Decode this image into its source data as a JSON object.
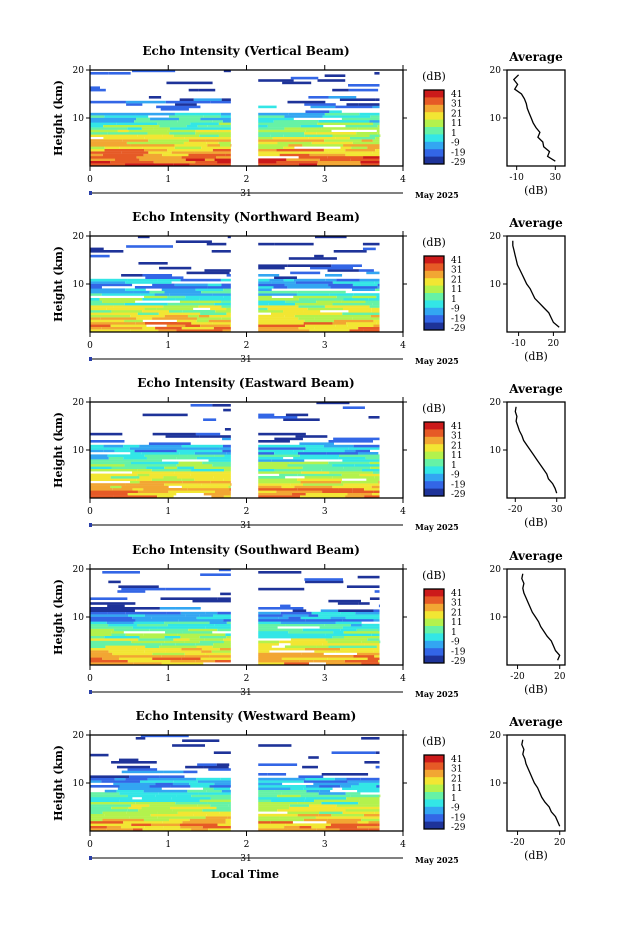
{
  "figure": {
    "common_xlabel": "Local Time",
    "date_label": "May 2025",
    "day_label": "31",
    "cbar_unit": "(dB)",
    "cbar_ticks": [
      "41",
      "31",
      "21",
      "11",
      "1",
      "-9",
      "-19",
      "-29"
    ],
    "avg_title": "Average",
    "avg_unit": "(dB)"
  },
  "colors": {
    "colormap": [
      "#1e3399",
      "#3366e6",
      "#33a6f2",
      "#33e6e6",
      "#66f2a6",
      "#b3f24d",
      "#f2e633",
      "#f2a633",
      "#e65a26",
      "#cc1a1a"
    ]
  },
  "chart_data": [
    {
      "type": "heatmap",
      "title": "Echo Intensity (Vertical Beam)",
      "ylabel": "Height (km)",
      "xlim": [
        0,
        4
      ],
      "ylim": [
        0,
        20
      ],
      "xticks": [
        "0",
        "1",
        "2",
        "3",
        "4"
      ],
      "yticks": [
        "20",
        "10"
      ],
      "data_gap_hours": [
        1.8,
        2.15
      ],
      "data_end_hour": 3.7,
      "clim": [
        -29,
        41
      ],
      "avg_profile": {
        "xticks": [
          "-10",
          "30"
        ],
        "xlim": [
          -20,
          40
        ],
        "height_km": [
          1,
          2,
          3,
          4,
          5,
          6,
          7,
          8,
          9,
          10,
          11,
          12,
          13,
          14,
          15,
          16,
          17,
          18,
          19
        ],
        "db": [
          30,
          22,
          24,
          18,
          17,
          12,
          14,
          10,
          7,
          5,
          3,
          1,
          0,
          -2,
          -5,
          -12,
          -9,
          -13,
          -8
        ]
      }
    },
    {
      "type": "heatmap",
      "title": "Echo Intensity (Northward Beam)",
      "ylabel": "Height (km)",
      "xlim": [
        0,
        4
      ],
      "ylim": [
        0,
        20
      ],
      "xticks": [
        "0",
        "1",
        "2",
        "3",
        "4"
      ],
      "yticks": [
        "20",
        "10"
      ],
      "data_gap_hours": [
        1.8,
        2.15
      ],
      "data_end_hour": 3.7,
      "clim": [
        -29,
        41
      ],
      "avg_profile": {
        "xticks": [
          "-10",
          "20"
        ],
        "xlim": [
          -20,
          30
        ],
        "height_km": [
          1,
          2,
          3,
          4,
          5,
          6,
          7,
          8,
          9,
          10,
          11,
          12,
          13,
          14,
          15,
          16,
          17,
          18,
          19
        ],
        "db": [
          25,
          20,
          18,
          16,
          12,
          8,
          4,
          2,
          0,
          -3,
          -5,
          -7,
          -9,
          -11,
          -12,
          -13,
          -14,
          -15,
          -15
        ]
      }
    },
    {
      "type": "heatmap",
      "title": "Echo Intensity (Eastward Beam)",
      "ylabel": "Height (km)",
      "xlim": [
        0,
        4
      ],
      "ylim": [
        0,
        20
      ],
      "xticks": [
        "0",
        "1",
        "2",
        "3",
        "4"
      ],
      "yticks": [
        "20",
        "10"
      ],
      "data_gap_hours": [
        1.8,
        2.15
      ],
      "data_end_hour": 3.7,
      "clim": [
        -29,
        41
      ],
      "avg_profile": {
        "xticks": [
          "-20",
          "30"
        ],
        "xlim": [
          -30,
          40
        ],
        "height_km": [
          1,
          2,
          3,
          4,
          5,
          6,
          7,
          8,
          9,
          10,
          11,
          12,
          13,
          14,
          15,
          16,
          17,
          18,
          19
        ],
        "db": [
          30,
          28,
          25,
          20,
          18,
          14,
          10,
          6,
          2,
          -2,
          -6,
          -10,
          -12,
          -15,
          -17,
          -19,
          -18,
          -20,
          -19
        ]
      }
    },
    {
      "type": "heatmap",
      "title": "Echo Intensity (Southward Beam)",
      "ylabel": "Height (km)",
      "xlim": [
        0,
        4
      ],
      "ylim": [
        0,
        20
      ],
      "xticks": [
        "0",
        "1",
        "2",
        "3",
        "4"
      ],
      "yticks": [
        "20",
        "10"
      ],
      "data_gap_hours": [
        1.8,
        2.15
      ],
      "data_end_hour": 3.7,
      "clim": [
        -29,
        41
      ],
      "avg_profile": {
        "xticks": [
          "-20",
          "20"
        ],
        "xlim": [
          -30,
          25
        ],
        "height_km": [
          1,
          2,
          3,
          4,
          5,
          6,
          7,
          8,
          9,
          10,
          11,
          12,
          13,
          14,
          15,
          16,
          17,
          18,
          19
        ],
        "db": [
          18,
          20,
          16,
          14,
          12,
          8,
          5,
          2,
          0,
          -3,
          -6,
          -8,
          -10,
          -12,
          -14,
          -15,
          -14,
          -16,
          -15
        ]
      }
    },
    {
      "type": "heatmap",
      "title": "Echo Intensity (Westward Beam)",
      "ylabel": "Height (km)",
      "xlim": [
        0,
        4
      ],
      "ylim": [
        0,
        20
      ],
      "xticks": [
        "0",
        "1",
        "2",
        "3",
        "4"
      ],
      "yticks": [
        "20",
        "10"
      ],
      "data_gap_hours": [
        1.8,
        2.15
      ],
      "data_end_hour": 3.7,
      "clim": [
        -29,
        41
      ],
      "avg_profile": {
        "xticks": [
          "-20",
          "20"
        ],
        "xlim": [
          -30,
          25
        ],
        "height_km": [
          1,
          2,
          3,
          4,
          5,
          6,
          7,
          8,
          9,
          10,
          11,
          12,
          13,
          14,
          15,
          16,
          17,
          18,
          19
        ],
        "db": [
          20,
          18,
          16,
          12,
          10,
          6,
          3,
          1,
          -1,
          -4,
          -6,
          -8,
          -10,
          -12,
          -13,
          -15,
          -14,
          -16,
          -15
        ]
      }
    }
  ]
}
